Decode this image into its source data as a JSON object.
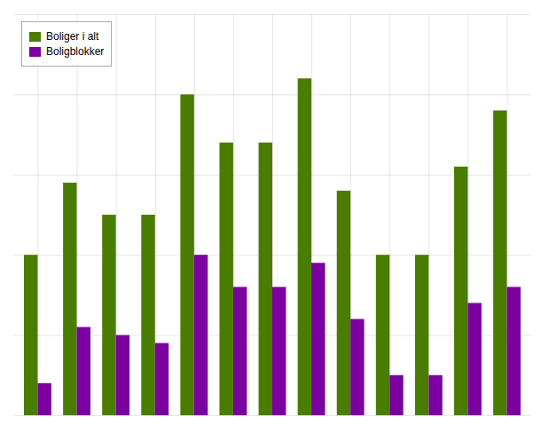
{
  "chart_data": {
    "type": "bar",
    "categories": [
      null,
      null,
      null,
      null,
      null,
      null,
      null,
      null,
      null,
      null,
      null,
      null,
      null
    ],
    "series": [
      {
        "name": "Boliger i alt",
        "color": "#4a7c00",
        "values": [
          20,
          29,
          25,
          25,
          40,
          34,
          34,
          42,
          28,
          20,
          20,
          31,
          38
        ]
      },
      {
        "name": "Boligblokker",
        "color": "#7b00a0",
        "values": [
          4,
          11,
          10,
          9,
          20,
          16,
          16,
          19,
          12,
          5,
          5,
          14,
          16
        ]
      }
    ],
    "ylim": [
      0,
      50
    ],
    "yticks": [
      0,
      10,
      20,
      30,
      40,
      50
    ],
    "grid": true,
    "legend": "upper left",
    "tick_labels": false
  }
}
